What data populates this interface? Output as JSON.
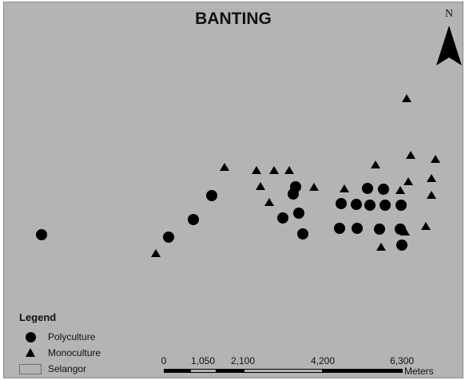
{
  "map": {
    "title": "BANTING",
    "north_label": "N",
    "background_color": "#b4b4b4"
  },
  "legend": {
    "title": "Legend",
    "items": [
      {
        "label": "Polyculture",
        "symbol": "filled-circle"
      },
      {
        "label": "Monoculture",
        "symbol": "filled-triangle"
      },
      {
        "label": "Selangor",
        "symbol": "gray-rectangle"
      }
    ]
  },
  "scale_bar": {
    "ticks": [
      "0",
      "1,050",
      "2,100",
      "4,200",
      "6,300"
    ],
    "units": "Meters"
  }
}
